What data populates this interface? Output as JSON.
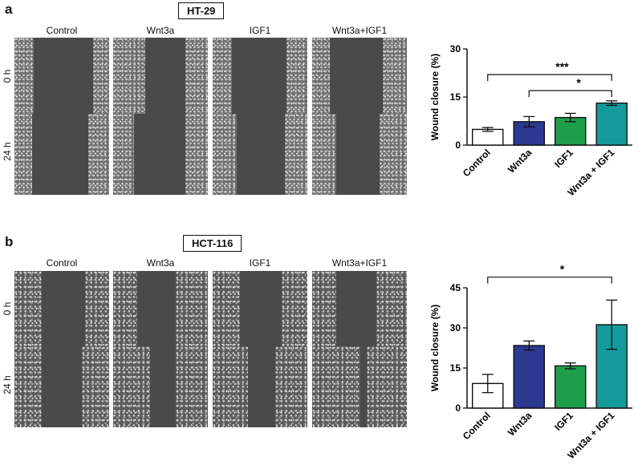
{
  "figure": {
    "panels": [
      {
        "letter": "a",
        "cell_line": "HT-29",
        "columns": [
          "Control",
          "Wnt3a",
          "IGF1",
          "Wnt3a+IGF1"
        ],
        "rows": [
          "0 h",
          "24 h"
        ]
      },
      {
        "letter": "b",
        "cell_line": "HCT-116",
        "columns": [
          "Control",
          "Wnt3a",
          "IGF1",
          "Wnt3a+IGF1"
        ],
        "rows": [
          "0 h",
          "24 h"
        ]
      }
    ]
  },
  "chart_data": [
    {
      "type": "bar",
      "categories": [
        "Control",
        "Wnt3a",
        "IGF1",
        "Wnt3a + IGF1"
      ],
      "values": [
        4.9,
        7.3,
        8.6,
        13.1
      ],
      "errors": [
        0.6,
        1.6,
        1.3,
        0.7
      ],
      "colors": [
        "#ffffff",
        "#2b3990",
        "#1e9d4a",
        "#159a9c"
      ],
      "ylabel": "Wound closure (%)",
      "ylim": [
        0,
        30
      ],
      "yticks": [
        0,
        15,
        30
      ],
      "significance": [
        {
          "from": 0,
          "to": 3,
          "label": "***",
          "y": 22
        },
        {
          "from": 1,
          "to": 3,
          "label": "*",
          "y": 17
        }
      ]
    },
    {
      "type": "bar",
      "categories": [
        "Control",
        "Wnt3a",
        "IGF1",
        "Wnt3a + IGF1"
      ],
      "values": [
        9.2,
        23.4,
        15.8,
        31.2
      ],
      "errors": [
        3.4,
        1.7,
        1.1,
        9.2
      ],
      "colors": [
        "#ffffff",
        "#2b3990",
        "#1e9d4a",
        "#159a9c"
      ],
      "ylabel": "Wound closure (%)",
      "ylim": [
        0,
        45
      ],
      "yticks": [
        0,
        15,
        30,
        45
      ],
      "significance": [
        {
          "from": 0,
          "to": 3,
          "label": "*",
          "y": 49
        }
      ]
    }
  ]
}
